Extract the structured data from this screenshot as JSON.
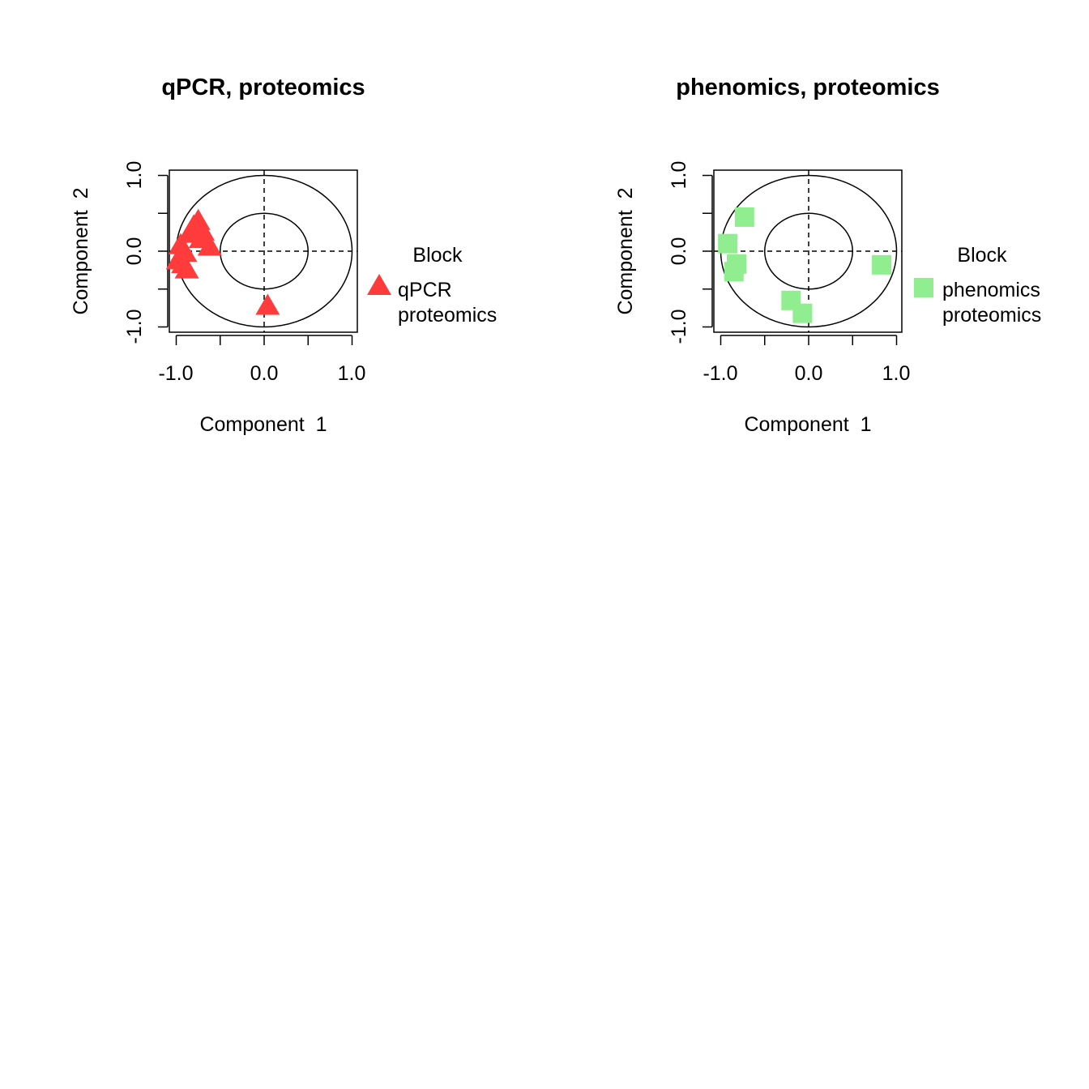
{
  "chart_data": [
    {
      "type": "scatter",
      "title": "qPCR, proteomics",
      "xlabel": "Component  1",
      "ylabel": "Component  2",
      "xlim": [
        -1.1,
        1.1
      ],
      "ylim": [
        -1.1,
        1.1
      ],
      "x_ticks": [
        "-1.0",
        "0.0",
        "1.0"
      ],
      "y_ticks": [
        "-1.0",
        "0.0",
        "1.0"
      ],
      "circles_radii": [
        0.5,
        1.0
      ],
      "reference_lines": "dashed x=0 and y=0",
      "legend": {
        "title": "Block",
        "position": "right",
        "entries": [
          "qPCR",
          "proteomics"
        ],
        "marker": "triangle",
        "color": "#FF3B3B"
      },
      "series": [
        {
          "marker": "triangle",
          "color": "#FF3B3B",
          "x": [
            -0.75,
            -0.8,
            -0.7,
            -0.85,
            -0.72,
            -0.62,
            -0.95,
            -0.9,
            -0.98,
            -0.92,
            -0.88,
            0.04
          ],
          "y": [
            0.42,
            0.35,
            0.28,
            0.25,
            0.18,
            0.08,
            0.1,
            0.0,
            -0.1,
            -0.15,
            -0.22,
            -0.7
          ]
        }
      ]
    },
    {
      "type": "scatter",
      "title": "phenomics, proteomics",
      "xlabel": "Component  1",
      "ylabel": "Component  2",
      "xlim": [
        -1.1,
        1.1
      ],
      "ylim": [
        -1.1,
        1.1
      ],
      "x_ticks": [
        "-1.0",
        "0.0",
        "1.0"
      ],
      "y_ticks": [
        "-1.0",
        "0.0",
        "1.0"
      ],
      "circles_radii": [
        0.5,
        1.0
      ],
      "reference_lines": "dashed x=0 and y=0",
      "legend": {
        "title": "Block",
        "position": "right",
        "entries": [
          "phenomics",
          "proteomics"
        ],
        "marker": "square",
        "color": "#90EE90"
      },
      "series": [
        {
          "marker": "square",
          "color": "#90EE90",
          "x": [
            -0.73,
            -0.92,
            -0.82,
            -0.85,
            0.83,
            -0.2,
            -0.07
          ],
          "y": [
            0.45,
            0.1,
            -0.17,
            -0.27,
            -0.18,
            -0.65,
            -0.82
          ]
        }
      ]
    }
  ]
}
